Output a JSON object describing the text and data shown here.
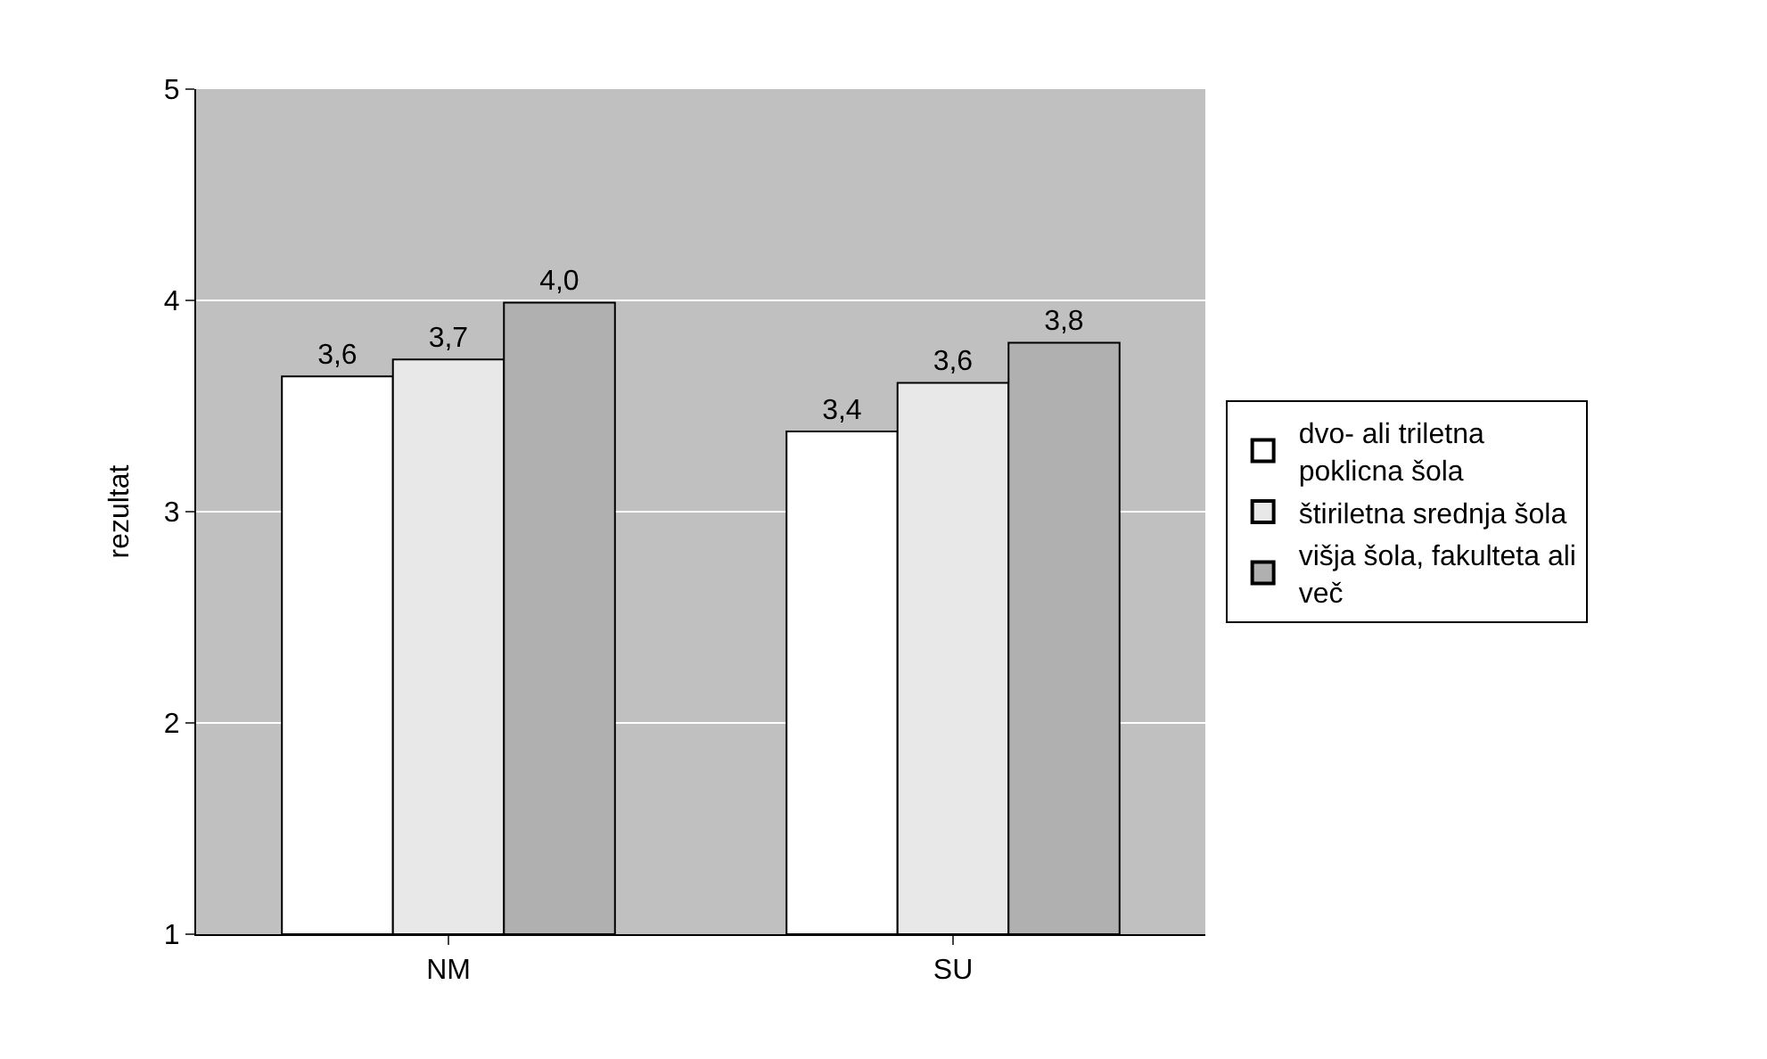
{
  "chart_data": {
    "type": "bar",
    "ylabel": "rezultat",
    "categories": [
      "NM",
      "SU"
    ],
    "series": [
      {
        "name": "dvo- ali triletna poklicna šola",
        "color": "#ffffff",
        "values": [
          3.64,
          3.38
        ],
        "value_labels": [
          "3,6",
          "3,4"
        ]
      },
      {
        "name": "štiriletna srednja šola",
        "color": "#e8e8e8",
        "values": [
          3.72,
          3.61
        ],
        "value_labels": [
          "3,7",
          "3,6"
        ]
      },
      {
        "name": "višja šola, fakulteta ali več",
        "color": "#b0b0b0",
        "values": [
          3.99,
          3.8
        ],
        "value_labels": [
          "4,0",
          "3,8"
        ]
      }
    ],
    "ylim": [
      1,
      5
    ],
    "yticks": [
      1,
      2,
      3,
      4,
      5
    ],
    "grid": "y",
    "legend": "right"
  }
}
